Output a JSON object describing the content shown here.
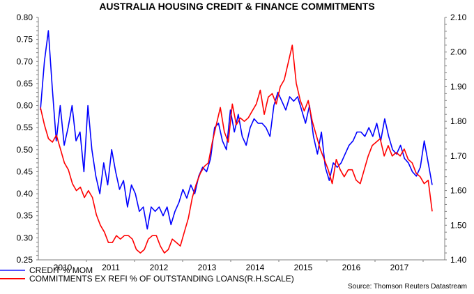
{
  "chart_data": {
    "type": "line",
    "title": "AUSTRALIA HOUSING CREDIT & FINANCE COMMITMENTS",
    "xlabel": "",
    "ylabel_left": "",
    "ylabel_right": "",
    "x_tick_labels": [
      "2010",
      "2011",
      "2012",
      "2013",
      "2014",
      "2015",
      "2016",
      "2017"
    ],
    "x_range": [
      "2009-07",
      "2017-10"
    ],
    "left_axis": {
      "min": 0.25,
      "max": 0.8,
      "ticks": [
        "0.25",
        "0.30",
        "0.35",
        "0.40",
        "0.45",
        "0.50",
        "0.55",
        "0.60",
        "0.65",
        "0.70",
        "0.75",
        "0.80"
      ]
    },
    "right_axis": {
      "min": 1.4,
      "max": 2.1,
      "ticks": [
        "1.40",
        "1.50",
        "1.60",
        "1.70",
        "1.80",
        "1.90",
        "2.00",
        "2.10"
      ]
    },
    "grid": false,
    "legend_position": "bottom-left",
    "series": [
      {
        "name": "CREDIT % MOM",
        "axis": "left",
        "color": "#0000ff",
        "values": [
          0.59,
          0.7,
          0.77,
          0.64,
          0.52,
          0.6,
          0.51,
          0.55,
          0.6,
          0.52,
          0.54,
          0.45,
          0.6,
          0.5,
          0.44,
          0.4,
          0.47,
          0.42,
          0.5,
          0.45,
          0.41,
          0.43,
          0.37,
          0.42,
          0.4,
          0.36,
          0.37,
          0.32,
          0.37,
          0.36,
          0.37,
          0.35,
          0.37,
          0.33,
          0.36,
          0.38,
          0.41,
          0.39,
          0.42,
          0.4,
          0.44,
          0.46,
          0.45,
          0.48,
          0.55,
          0.56,
          0.52,
          0.5,
          0.59,
          0.54,
          0.58,
          0.53,
          0.51,
          0.55,
          0.57,
          0.56,
          0.56,
          0.55,
          0.53,
          0.6,
          0.63,
          0.61,
          0.59,
          0.62,
          0.61,
          0.62,
          0.59,
          0.56,
          0.6,
          0.53,
          0.49,
          0.54,
          0.46,
          0.43,
          0.47,
          0.46,
          0.47,
          0.49,
          0.51,
          0.52,
          0.54,
          0.54,
          0.53,
          0.55,
          0.53,
          0.56,
          0.52,
          0.57,
          0.53,
          0.5,
          0.49,
          0.51,
          0.48,
          0.47,
          0.45,
          0.44,
          0.46,
          0.52,
          0.47,
          0.42
        ]
      },
      {
        "name": "COMMITMENTS EX REFI % OF OUTSTANDING LOANS(R.H.SCALE)",
        "axis": "right",
        "color": "#ff0000",
        "values": [
          1.84,
          1.79,
          1.75,
          1.74,
          1.76,
          1.72,
          1.68,
          1.66,
          1.62,
          1.6,
          1.61,
          1.58,
          1.6,
          1.58,
          1.53,
          1.5,
          1.48,
          1.45,
          1.45,
          1.47,
          1.46,
          1.47,
          1.47,
          1.46,
          1.43,
          1.42,
          1.43,
          1.46,
          1.47,
          1.47,
          1.44,
          1.42,
          1.43,
          1.46,
          1.45,
          1.44,
          1.48,
          1.52,
          1.58,
          1.62,
          1.65,
          1.67,
          1.68,
          1.74,
          1.79,
          1.84,
          1.77,
          1.74,
          1.85,
          1.79,
          1.81,
          1.8,
          1.81,
          1.83,
          1.85,
          1.89,
          1.82,
          1.87,
          1.88,
          1.85,
          1.9,
          1.92,
          1.97,
          2.02,
          1.91,
          1.86,
          1.83,
          1.86,
          1.8,
          1.76,
          1.72,
          1.69,
          1.66,
          1.62,
          1.69,
          1.66,
          1.64,
          1.66,
          1.66,
          1.63,
          1.62,
          1.66,
          1.7,
          1.73,
          1.74,
          1.75,
          1.7,
          1.73,
          1.7,
          1.71,
          1.7,
          1.72,
          1.69,
          1.68,
          1.65,
          1.64,
          1.62,
          1.63,
          1.54
        ]
      }
    ]
  },
  "legend": {
    "items": [
      {
        "label": "CREDIT % MOM",
        "color": "#0000ff"
      },
      {
        "label": "COMMITMENTS EX REFI % OF OUTSTANDING LOANS(R.H.SCALE)",
        "color": "#ff0000"
      }
    ]
  },
  "source": "Source: Thomson Reuters Datastream"
}
